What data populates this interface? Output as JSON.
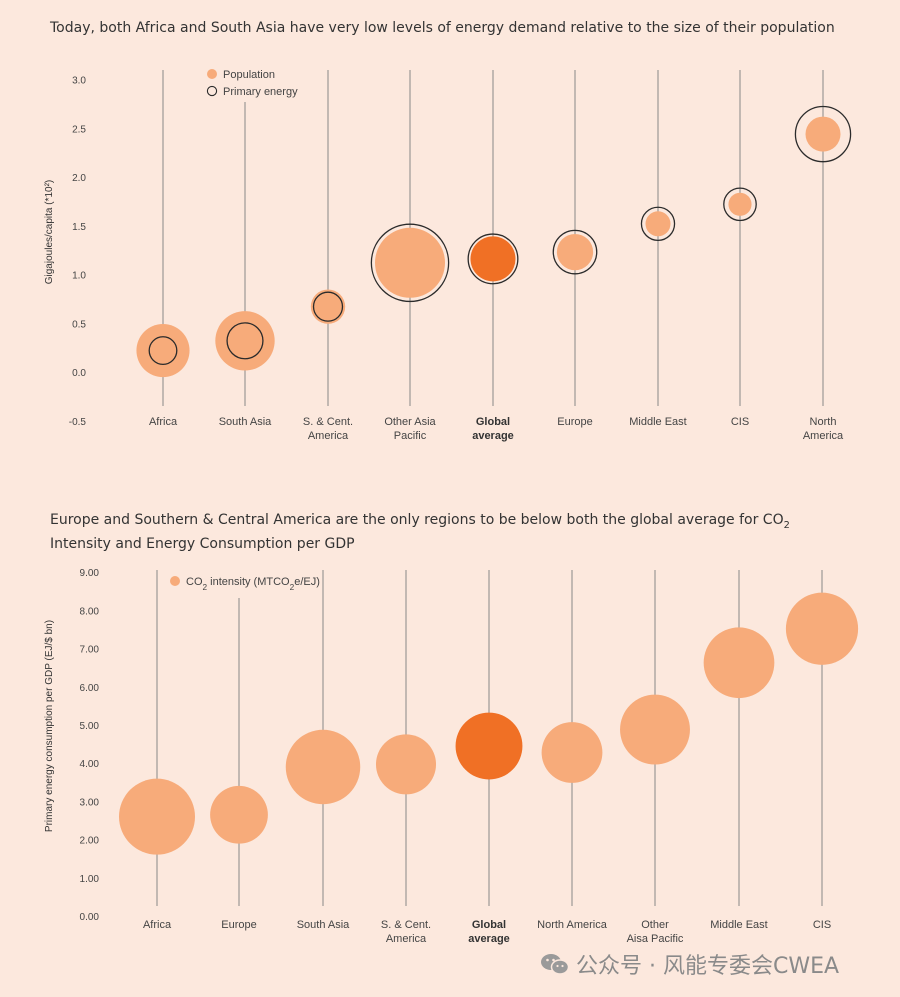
{
  "watermark": "公众号 · 风能专委会CWEA",
  "colors": {
    "population": "#f7ab7a",
    "global": "#f07025",
    "ring": "#2b2b2b",
    "axis_line": "#888888"
  },
  "chart_data": [
    {
      "type": "bubble",
      "title": "Today, both Africa and South Asia have very low levels of energy demand relative to the size of their population",
      "ylabel": "Gigajoules/capita (*10²)",
      "ylim": [
        -0.5,
        3.0
      ],
      "yticks": [
        "3.0",
        "2.5",
        "2.0",
        "1.5",
        "1.0",
        "0.5",
        "0.0",
        "-0.5"
      ],
      "legend": [
        {
          "marker": "filled",
          "label": "Population"
        },
        {
          "marker": "ring",
          "label": "Primary energy"
        }
      ],
      "categories": [
        {
          "label": [
            "Africa"
          ],
          "bold": false,
          "y": 0.22,
          "population": 0.85,
          "energy": 0.4
        },
        {
          "label": [
            "South Asia"
          ],
          "bold": false,
          "y": 0.32,
          "population": 0.95,
          "energy": 0.52
        },
        {
          "label": [
            "S. & Cent.",
            "America"
          ],
          "bold": false,
          "y": 0.67,
          "population": 0.55,
          "energy": 0.42
        },
        {
          "label": [
            "Other Asia",
            "Pacific"
          ],
          "bold": false,
          "y": 1.12,
          "population": 1.12,
          "energy": 1.12
        },
        {
          "label": [
            "Global",
            "average"
          ],
          "bold": true,
          "y": 1.16,
          "population": 0.72,
          "energy": 0.72
        },
        {
          "label": [
            "Europe"
          ],
          "bold": false,
          "y": 1.23,
          "population": 0.58,
          "energy": 0.63
        },
        {
          "label": [
            "Middle East"
          ],
          "bold": false,
          "y": 1.52,
          "population": 0.4,
          "energy": 0.48
        },
        {
          "label": [
            "CIS"
          ],
          "bold": false,
          "y": 1.72,
          "population": 0.37,
          "energy": 0.47
        },
        {
          "label": [
            "North",
            "America"
          ],
          "bold": false,
          "y": 2.44,
          "population": 0.56,
          "energy": 0.8
        }
      ]
    },
    {
      "type": "bubble",
      "title": "Europe and Southern & Central America are the only regions to be below both the global average for CO₂ Intensity and Energy Consumption per GDP",
      "ylabel": "Primary energy consumption per GDP (EJ/$ bn)",
      "ylim": [
        0,
        9
      ],
      "yticks": [
        "9.00",
        "8.00",
        "7.00",
        "6.00",
        "5.00",
        "4.00",
        "3.00",
        "2.00",
        "1.00",
        "0.00"
      ],
      "legend": [
        {
          "marker": "filled",
          "label": "CO₂ intensity (MTCO₂e/EJ)"
        }
      ],
      "categories": [
        {
          "label": [
            "Africa"
          ],
          "bold": false,
          "y": 2.6,
          "co2": 1.0
        },
        {
          "label": [
            "Europe"
          ],
          "bold": false,
          "y": 2.65,
          "co2": 0.76
        },
        {
          "label": [
            "South Asia"
          ],
          "bold": false,
          "y": 3.9,
          "co2": 0.98
        },
        {
          "label": [
            "S. & Cent.",
            "America"
          ],
          "bold": false,
          "y": 3.97,
          "co2": 0.79
        },
        {
          "label": [
            "Global",
            "average"
          ],
          "bold": true,
          "y": 4.45,
          "co2": 0.88
        },
        {
          "label": [
            "North America"
          ],
          "bold": false,
          "y": 4.28,
          "co2": 0.8
        },
        {
          "label": [
            "Other",
            "Aisa Pacific"
          ],
          "bold": false,
          "y": 4.88,
          "co2": 0.92
        },
        {
          "label": [
            "Middle East"
          ],
          "bold": false,
          "y": 6.63,
          "co2": 0.93
        },
        {
          "label": [
            "CIS"
          ],
          "bold": false,
          "y": 7.52,
          "co2": 0.95
        }
      ]
    }
  ]
}
